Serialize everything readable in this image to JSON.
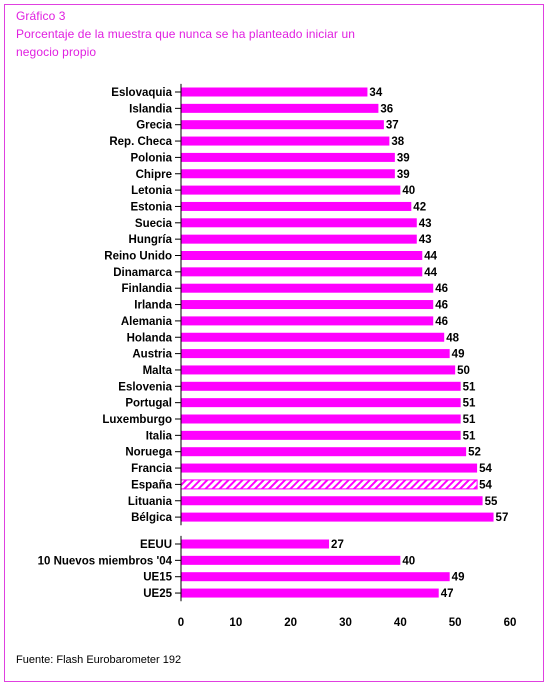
{
  "header": {
    "label": "Gráfico 3",
    "title_line1": "Porcentaje de la muestra que nunca se ha planteado iniciar un",
    "title_line2": "negocio propio"
  },
  "source": "Fuente: Flash Eurobarometer 192",
  "colors": {
    "bar": "#ff00ff",
    "accent": "#e020e0",
    "text": "#000000"
  },
  "chart_data": {
    "type": "bar",
    "orientation": "horizontal",
    "xlim": [
      0,
      60
    ],
    "xticks": [
      "0",
      "10",
      "20",
      "30",
      "40",
      "50",
      "60"
    ],
    "groups": [
      {
        "categories": [
          "Eslovaquia",
          "Islandia",
          "Grecia",
          "Rep. Checa",
          "Polonia",
          "Chipre",
          "Letonia",
          "Estonia",
          "Suecia",
          "Hungría",
          "Reino Unido",
          "Dinamarca",
          "Finlandia",
          "Irlanda",
          "Alemania",
          "Holanda",
          "Austria",
          "Malta",
          "Eslovenia",
          "Portugal",
          "Luxemburgo",
          "Italia",
          "Noruega",
          "Francia",
          "España",
          "Lituania",
          "Bélgica"
        ],
        "values": [
          34,
          36,
          37,
          38,
          39,
          39,
          40,
          42,
          43,
          43,
          44,
          44,
          46,
          46,
          46,
          48,
          49,
          50,
          51,
          51,
          51,
          51,
          52,
          54,
          54,
          55,
          57
        ],
        "highlighted": [
          "España"
        ]
      },
      {
        "categories": [
          "EEUU",
          "10 Nuevos miembros '04",
          "UE15",
          "UE25"
        ],
        "values": [
          27,
          40,
          49,
          47
        ],
        "highlighted": []
      }
    ]
  }
}
